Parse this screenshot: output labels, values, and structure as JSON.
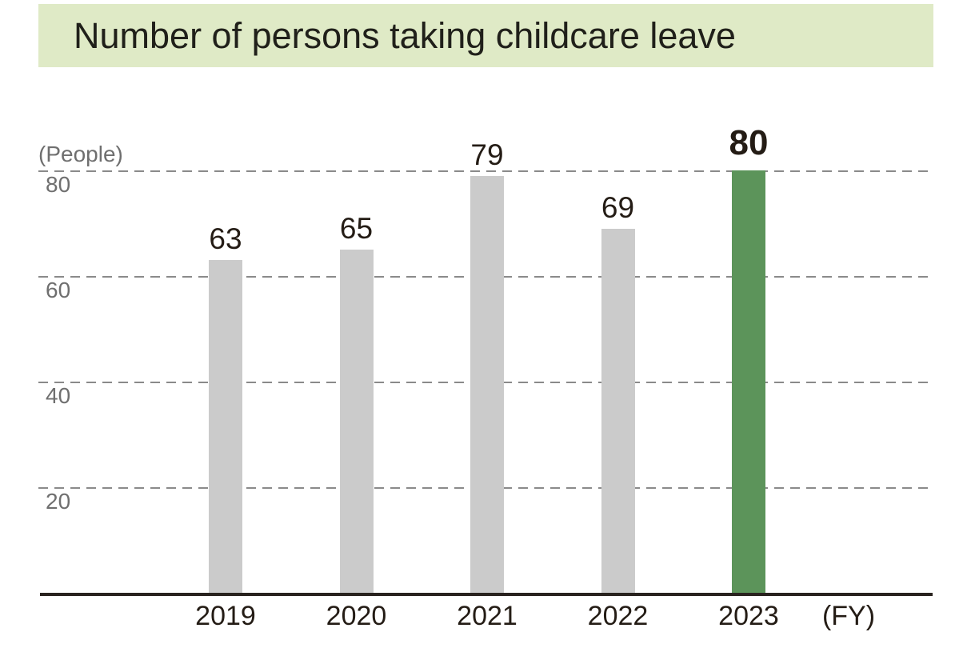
{
  "title_banner": {
    "text": "Number of persons taking childcare leave"
  },
  "colors": {
    "banner_bg": "#dfeac6",
    "bar_gray": "#cbcbcb",
    "bar_green": "#5c945a",
    "gridline": "#8a8a8a",
    "axis": "#29231f",
    "text_dark": "#241c15",
    "text_gray": "#6f6f6f"
  },
  "chart_data": {
    "type": "bar",
    "title": "Number of persons taking childcare leave",
    "categories": [
      "2019",
      "2020",
      "2021",
      "2022",
      "2023"
    ],
    "values": [
      63,
      65,
      79,
      69,
      80
    ],
    "highlight_index": 4,
    "highlighted_category": "2023",
    "ylabel": "(People)",
    "xlabel_suffix": "(FY)",
    "yticks": [
      20,
      40,
      60,
      80
    ],
    "ylim": [
      0,
      85
    ],
    "grid": "horizontal dashed",
    "legend": "none",
    "tick_label_position": "below gridline"
  }
}
